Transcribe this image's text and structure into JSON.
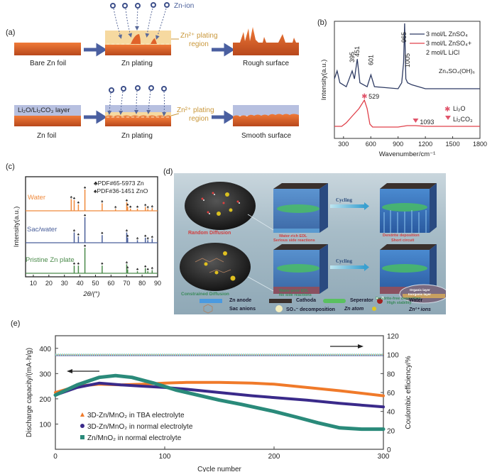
{
  "panel_a": {
    "label": "(a)",
    "ion_label": "Zn-ion",
    "plating_region_label_top": "Zn²⁺ plating",
    "plating_region_label_bottom": "region",
    "row1": {
      "stage1": "Bare Zn foil",
      "stage2": "Zn plating",
      "stage3": "Rough surface"
    },
    "row2": {
      "layer_label": "Li₂O/Li₂CO₃ layer",
      "stage1": "Zn foil",
      "stage2": "Zn plating",
      "stage3": "Smooth surface"
    },
    "colors": {
      "zn_foil": "#e0632a",
      "electrolyte": "#f6d9a0",
      "coating": "#b7c0e0",
      "arrow": "#4a5fa0",
      "ion": "#3d4f8a",
      "annotation": "#c9973a"
    }
  },
  "panel_b": {
    "label": "(b)"
  },
  "panel_c": {
    "label": "(c)"
  },
  "panel_d": {
    "label": "(d)",
    "random_diffusion": "Random Diffusion",
    "water_rich_1": "Water-rich EDL",
    "water_rich_2": "Serious side reactions",
    "cycling_1": "Cycling",
    "dendrite_1": "Dendrite deposition",
    "dendrite_2": "Short circuit",
    "constrained_diffusion": "Constrained Diffusion",
    "water_poor_1": "Water-poor EDL",
    "water_poor_2": "No side reactions",
    "cycling_2": "Cycling",
    "dendrite_free_1": "Dendrite-free deposition",
    "dendrite_free_2": "High stability",
    "organic_layer": "Organic layer",
    "inorganic_layer": "Inorganic layer",
    "legend": {
      "zn_anode": "Zn anode",
      "cathode": "Cathoda",
      "separator": "Seperator",
      "water": "Water",
      "sac_anions": "Sac anions",
      "so4_decomposition": "SO₄⁻ decomposition",
      "zn_atom": "Zn atom",
      "zn_ions": "Zn²⁺ ions"
    }
  },
  "panel_e": {
    "label": "(e)"
  },
  "chart_data": [
    {
      "id": "b",
      "type": "line",
      "title": "",
      "xlabel": "Wavenumber/cm⁻¹",
      "ylabel": "Intensity(a.u.)",
      "xlim": [
        200,
        1800
      ],
      "xticks": [
        300,
        600,
        900,
        1200,
        1500,
        1800
      ],
      "yticks": [],
      "series": [
        {
          "name": "3 mol/L ZnSO₄",
          "color": "#2e3b63",
          "points": [
            [
              200,
              0.72
            ],
            [
              230,
              0.76
            ],
            [
              260,
              0.7
            ],
            [
              330,
              0.68
            ],
            [
              395,
              0.76
            ],
            [
              420,
              0.72
            ],
            [
              451,
              0.82
            ],
            [
              480,
              0.7
            ],
            [
              560,
              0.68
            ],
            [
              601,
              0.74
            ],
            [
              640,
              0.68
            ],
            [
              900,
              0.67
            ],
            [
              940,
              0.7
            ],
            [
              960,
              0.8
            ],
            [
              972,
              1.0
            ],
            [
              985,
              0.72
            ],
            [
              1005,
              0.7
            ],
            [
              1050,
              0.69
            ],
            [
              1200,
              0.67
            ],
            [
              1500,
              0.67
            ],
            [
              1800,
              0.67
            ]
          ]
        },
        {
          "name": "3 mol/L ZnSO₄+ 2 mol/L LiCl",
          "color": "#e0404a",
          "points": [
            [
              200,
              0.05
            ],
            [
              280,
              0.05
            ],
            [
              330,
              0.1
            ],
            [
              400,
              0.2
            ],
            [
              470,
              0.3
            ],
            [
              529,
              0.42
            ],
            [
              560,
              0.3
            ],
            [
              590,
              0.08
            ],
            [
              620,
              0.04
            ],
            [
              900,
              0.04
            ],
            [
              1000,
              0.06
            ],
            [
              1093,
              0.06
            ],
            [
              1200,
              0.05
            ],
            [
              1500,
              0.05
            ],
            [
              1800,
              0.05
            ]
          ]
        }
      ],
      "annotations": [
        {
          "text": "395",
          "x": 395
        },
        {
          "text": "451",
          "x": 451
        },
        {
          "text": "601",
          "x": 601
        },
        {
          "text": "965",
          "x": 965
        },
        {
          "text": "1005",
          "x": 1005
        },
        {
          "text": "529",
          "x": 529,
          "marker": "Li₂O"
        },
        {
          "text": "1093",
          "x": 1093,
          "marker": "Li₂CO₃"
        },
        {
          "text": "Zn₄SO₄(OH)₆"
        }
      ],
      "legend": [
        {
          "label": "3 mol/L ZnSO₄",
          "color": "#2e3b63"
        },
        {
          "label": "3 mol/L ZnSO₄+",
          "color": "#e0404a"
        },
        {
          "label": "2 mol/L LiCl"
        }
      ],
      "marker_legend": [
        {
          "label": "Li₂O",
          "symbol": "asterisk",
          "color": "#e0546a"
        },
        {
          "label": "Li₂CO₃",
          "symbol": "triangle-down",
          "color": "#e0546a"
        }
      ],
      "legend_position": "top-right"
    },
    {
      "id": "c",
      "type": "line",
      "title": "",
      "xlabel": "2θ/(°)",
      "ylabel": "Intensity(a.u.)",
      "xlim": [
        5,
        90
      ],
      "xticks": [
        10,
        20,
        30,
        40,
        50,
        60,
        70,
        80,
        90
      ],
      "legend": [
        {
          "label": "PDF#65-5973 Zn",
          "symbol": "club"
        },
        {
          "label": "PDF#36-1451 ZnO",
          "symbol": "spade"
        }
      ],
      "legend_position": "top-right",
      "series": [
        {
          "name": "Water",
          "color": "#f08a3c",
          "peaks": [
            [
              34.4,
              0.55
            ],
            [
              36.3,
              0.5
            ],
            [
              39.0,
              0.3
            ],
            [
              43.2,
              1.0
            ],
            [
              54.3,
              0.35
            ],
            [
              62.9,
              0.08
            ],
            [
              70.1,
              0.4
            ],
            [
              70.7,
              0.2
            ],
            [
              72.5,
              0.1
            ],
            [
              77.0,
              0.1
            ],
            [
              82.1,
              0.18
            ],
            [
              83.7,
              0.08
            ],
            [
              86.5,
              0.12
            ]
          ]
        },
        {
          "name": "Sac/water",
          "color": "#4a5f9a",
          "peaks": [
            [
              36.3,
              0.4
            ],
            [
              39.0,
              0.25
            ],
            [
              43.2,
              1.0
            ],
            [
              54.3,
              0.3
            ],
            [
              70.1,
              0.4
            ],
            [
              70.7,
              0.2
            ],
            [
              77.0,
              0.1
            ],
            [
              82.1,
              0.2
            ],
            [
              83.7,
              0.1
            ],
            [
              86.5,
              0.15
            ]
          ]
        },
        {
          "name": "Pristine Zn plate",
          "color": "#4a8a4a",
          "peaks": [
            [
              36.3,
              0.3
            ],
            [
              39.0,
              0.3
            ],
            [
              43.2,
              1.0
            ],
            [
              54.3,
              0.3
            ],
            [
              70.1,
              0.35
            ],
            [
              70.7,
              0.15
            ],
            [
              77.0,
              0.08
            ],
            [
              82.1,
              0.2
            ],
            [
              83.7,
              0.08
            ],
            [
              86.5,
              0.12
            ]
          ]
        }
      ]
    },
    {
      "id": "e",
      "type": "scatter",
      "title": "",
      "xlabel": "Cycle number",
      "ylabel": "Discharge capacity/(mA·h/g)",
      "y2label": "Coulombic efficiency/%",
      "xlim": [
        0,
        300
      ],
      "ylim": [
        0,
        450
      ],
      "y2lim": [
        0,
        120
      ],
      "xticks": [
        0,
        100,
        200,
        300
      ],
      "yticks": [
        100,
        200,
        300,
        400
      ],
      "y2ticks": [
        0,
        20,
        40,
        60,
        80,
        100,
        120
      ],
      "legend_position": "bottom-left",
      "series": [
        {
          "name": "3D-Zn/MnO₂ in TBA electrolyte",
          "color": "#f07a2a",
          "marker": "triangle",
          "capacity": [
            [
              0,
              225
            ],
            [
              20,
              250
            ],
            [
              40,
              258
            ],
            [
              60,
              255
            ],
            [
              80,
              258
            ],
            [
              100,
              262
            ],
            [
              120,
              265
            ],
            [
              150,
              265
            ],
            [
              180,
              262
            ],
            [
              200,
              258
            ],
            [
              230,
              245
            ],
            [
              260,
              232
            ],
            [
              300,
              212
            ]
          ],
          "efficiency": [
            [
              0,
              100
            ],
            [
              100,
              100
            ],
            [
              200,
              100
            ],
            [
              300,
              100
            ]
          ]
        },
        {
          "name": "3D-Zn/MnO₂ in normal electrolyte",
          "color": "#3a2a8a",
          "marker": "circle",
          "capacity": [
            [
              0,
              215
            ],
            [
              20,
              245
            ],
            [
              40,
              262
            ],
            [
              60,
              255
            ],
            [
              80,
              250
            ],
            [
              100,
              245
            ],
            [
              120,
              238
            ],
            [
              150,
              225
            ],
            [
              180,
              212
            ],
            [
              200,
              205
            ],
            [
              230,
              195
            ],
            [
              260,
              182
            ],
            [
              300,
              168
            ]
          ],
          "efficiency": [
            [
              0,
              99
            ],
            [
              100,
              99
            ],
            [
              200,
              99
            ],
            [
              300,
              99
            ]
          ]
        },
        {
          "name": "Zn/MnO₂ in normal electrolyte",
          "color": "#2a8a7a",
          "marker": "square",
          "capacity": [
            [
              0,
              215
            ],
            [
              20,
              255
            ],
            [
              40,
              285
            ],
            [
              55,
              292
            ],
            [
              70,
              285
            ],
            [
              90,
              262
            ],
            [
              110,
              235
            ],
            [
              130,
              215
            ],
            [
              150,
              195
            ],
            [
              170,
              178
            ],
            [
              200,
              150
            ],
            [
              220,
              128
            ],
            [
              240,
              105
            ],
            [
              260,
              85
            ],
            [
              280,
              80
            ],
            [
              300,
              80
            ]
          ],
          "efficiency": [
            [
              0,
              100
            ],
            [
              100,
              100
            ],
            [
              200,
              100
            ],
            [
              300,
              100
            ]
          ]
        }
      ],
      "annotations": [
        {
          "text": "left arrow → capacity axis"
        },
        {
          "text": "right arrow → efficiency axis"
        }
      ]
    }
  ]
}
